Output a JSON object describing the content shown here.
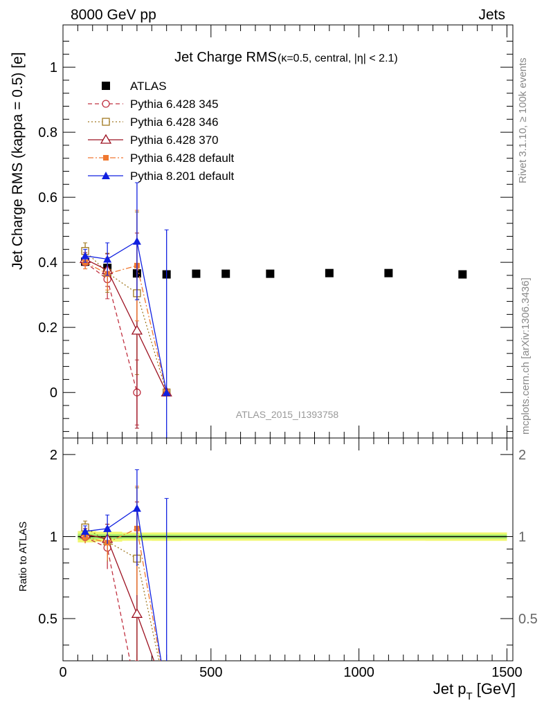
{
  "header": {
    "left": "8000 GeV pp",
    "right": "Jets"
  },
  "side": {
    "rivet": "Rivet 3.1.10, ≥ 100k events",
    "mcplots": "mcplots.cern.ch [arXiv:1306.3436]"
  },
  "watermark": "ATLAS_2015_I1393758",
  "chart_data": [
    {
      "type": "scatter",
      "title": "Jet Charge RMS",
      "title_sub": "(κ=0.5, central, |η| < 2.1)",
      "ylabel": "Jet Charge RMS (kappa = 0.5) [e]",
      "xlim": [
        0,
        1520
      ],
      "ylim": [
        -0.14,
        1.13
      ],
      "yticks": [
        0,
        0.2,
        0.4,
        0.6,
        0.8,
        1
      ],
      "ytick_labels": [
        "0",
        "0.2",
        "0.4",
        "0.6",
        "0.8",
        "1"
      ],
      "legend_position": "top-left",
      "series": [
        {
          "name": "ATLAS",
          "color": "#000000",
          "marker": "filled-square",
          "line": "none",
          "x": [
            75,
            150,
            250,
            350,
            450,
            550,
            700,
            900,
            1100,
            1350
          ],
          "y": [
            0.402,
            0.383,
            0.366,
            0.363,
            0.365,
            0.365,
            0.365,
            0.367,
            0.367,
            0.363
          ],
          "err": [
            0.012,
            0.01,
            0.008,
            0.008,
            0.008,
            0.008,
            0.008,
            0.008,
            0.008,
            0.008
          ]
        },
        {
          "name": "Pythia 6.428 345",
          "color": "#c03040",
          "marker": "open-circle",
          "line": "dashed",
          "x": [
            75,
            150,
            250
          ],
          "y": [
            0.4,
            0.348,
            0.0
          ],
          "err": [
            0.02,
            0.06,
            0.1
          ]
        },
        {
          "name": "Pythia 6.428 346",
          "color": "#a07820",
          "marker": "open-square",
          "line": "dotted",
          "x": [
            75,
            150,
            250,
            350
          ],
          "y": [
            0.435,
            0.368,
            0.305,
            0.0
          ],
          "err": [
            0.025,
            0.06,
            0.25,
            0.0
          ]
        },
        {
          "name": "Pythia 6.428 370",
          "color": "#9c1020",
          "marker": "open-triangle",
          "line": "solid",
          "x": [
            75,
            150,
            250,
            350
          ],
          "y": [
            0.41,
            0.376,
            0.19,
            0.0
          ],
          "err": [
            0.02,
            0.05,
            0.3,
            0.0
          ]
        },
        {
          "name": "Pythia 6.428 default",
          "color": "#f07830",
          "marker": "filled-square-small",
          "line": "dashdot",
          "x": [
            75,
            150,
            250,
            350
          ],
          "y": [
            0.4,
            0.365,
            0.39,
            0.0
          ],
          "err": [
            0.02,
            0.05,
            0.17,
            0.0
          ]
        },
        {
          "name": "Pythia 8.201 default",
          "color": "#1020e0",
          "marker": "filled-triangle",
          "line": "solid",
          "x": [
            75,
            150,
            250,
            350
          ],
          "y": [
            0.42,
            0.41,
            0.465,
            0.0
          ],
          "err": [
            0.02,
            0.05,
            0.18,
            0.5
          ]
        }
      ]
    },
    {
      "type": "line",
      "title": "",
      "ylabel": "Ratio to ATLAS",
      "xlabel": "Jet p",
      "xlabel_sub": "T",
      "xlabel_unit": " [GeV]",
      "xlim": [
        0,
        1520
      ],
      "ylim": [
        0.35,
        2.3
      ],
      "yticks": [
        0.5,
        1,
        2
      ],
      "ytick_labels": [
        "0.5",
        "1",
        "2"
      ],
      "xticks": [
        0,
        500,
        1000,
        1500
      ],
      "xtick_labels": [
        "0",
        "500",
        "1000",
        "1500"
      ],
      "series": [
        {
          "name": "Pythia 6.428 345",
          "x": [
            75,
            150,
            250
          ],
          "y": [
            0.995,
            0.91,
            0.0
          ],
          "err": [
            0.05,
            0.15,
            0.27
          ]
        },
        {
          "name": "Pythia 6.428 346",
          "x": [
            75,
            150,
            250,
            350
          ],
          "y": [
            1.08,
            0.96,
            0.83,
            0.0
          ],
          "err": [
            0.06,
            0.15,
            0.68,
            0.0
          ]
        },
        {
          "name": "Pythia 6.428 370",
          "x": [
            75,
            150,
            250,
            350
          ],
          "y": [
            1.02,
            0.98,
            0.52,
            0.0
          ],
          "err": [
            0.05,
            0.13,
            0.82,
            0.0
          ]
        },
        {
          "name": "Pythia 6.428 default",
          "x": [
            75,
            150,
            250,
            350
          ],
          "y": [
            0.995,
            0.95,
            1.07,
            0.0
          ],
          "err": [
            0.05,
            0.13,
            0.46,
            0.0
          ]
        },
        {
          "name": "Pythia 8.201 default",
          "x": [
            75,
            150,
            250,
            350
          ],
          "y": [
            1.045,
            1.07,
            1.27,
            0.0
          ],
          "err": [
            0.05,
            0.13,
            0.49,
            1.38
          ]
        }
      ]
    }
  ]
}
